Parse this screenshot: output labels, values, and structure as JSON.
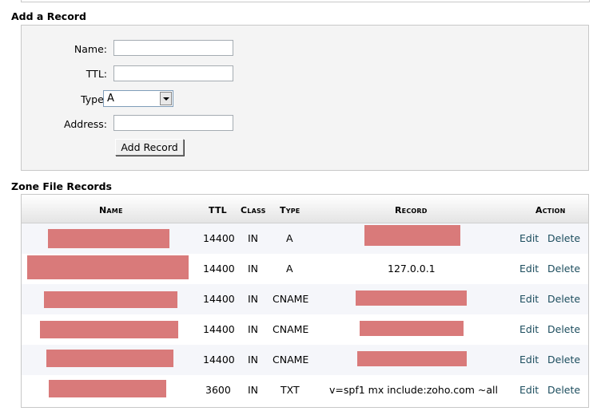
{
  "add_record": {
    "title": "Add a Record",
    "name_label": "Name:",
    "name_value": "",
    "ttl_label": "TTL:",
    "ttl_value": "",
    "type_label": "Type:",
    "type_value": "A",
    "address_label": "Address:",
    "address_value": "",
    "button_label": "Add Record"
  },
  "zone": {
    "title": "Zone File Records",
    "headers": {
      "name": "Name",
      "ttl": "TTL",
      "class": "Class",
      "type": "Type",
      "record": "Record",
      "action": "Action"
    },
    "edit_label": "Edit",
    "delete_label": "Delete",
    "rows": [
      {
        "ttl": "14400",
        "class": "IN",
        "type": "A",
        "record": ""
      },
      {
        "ttl": "14400",
        "class": "IN",
        "type": "A",
        "record": "127.0.0.1"
      },
      {
        "ttl": "14400",
        "class": "IN",
        "type": "CNAME",
        "record": ""
      },
      {
        "ttl": "14400",
        "class": "IN",
        "type": "CNAME",
        "record": ""
      },
      {
        "ttl": "14400",
        "class": "IN",
        "type": "CNAME",
        "record": ""
      },
      {
        "ttl": "3600",
        "class": "IN",
        "type": "TXT",
        "record": "v=spf1 mx include:zoho.com ~all"
      }
    ]
  },
  "colors": {
    "redaction": "#d97a7a",
    "link": "#1c4d5e",
    "panel_bg": "#f4f4f4"
  }
}
